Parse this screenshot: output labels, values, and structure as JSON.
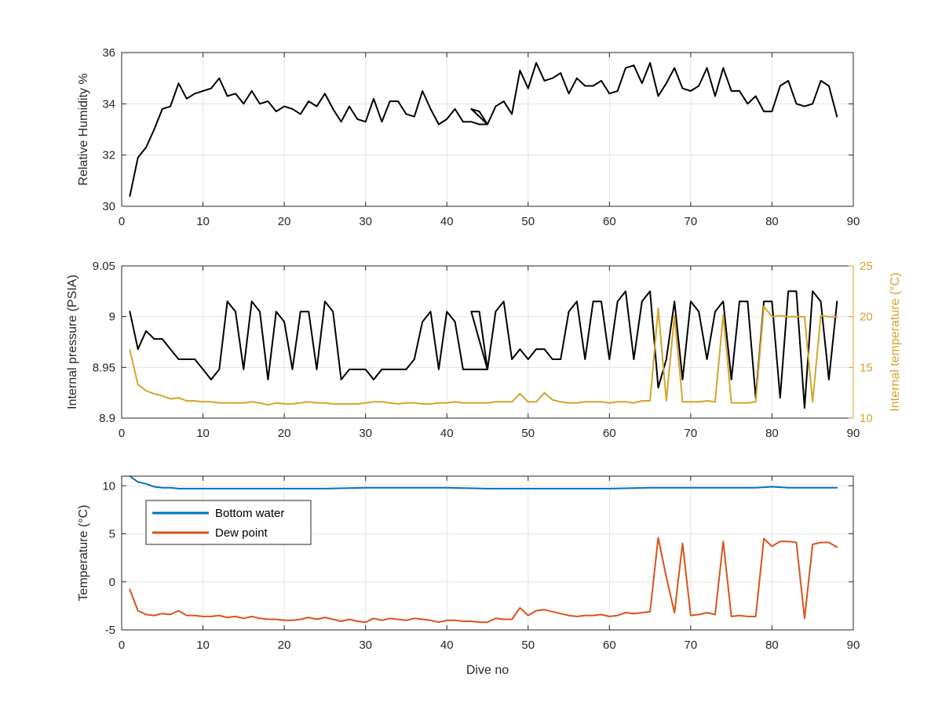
{
  "chart_data": [
    {
      "type": "line",
      "xlabel": "",
      "ylabel": "Relative Humidity %",
      "xlim": [
        0,
        90
      ],
      "ylim": [
        30,
        36
      ],
      "xticks": [
        "0",
        "10",
        "20",
        "30",
        "40",
        "50",
        "60",
        "70",
        "80",
        "90"
      ],
      "yticks": [
        "30",
        "32",
        "34",
        "36"
      ],
      "grid": true,
      "series": [
        {
          "color": "#000000",
          "x": [
            1,
            2,
            3,
            4,
            5,
            6,
            7,
            8,
            9,
            10,
            11,
            12,
            13,
            14,
            15,
            16,
            17,
            18,
            19,
            20,
            21,
            22,
            23,
            24,
            25,
            26,
            27,
            28,
            29,
            30,
            31,
            32,
            33,
            34,
            35,
            36,
            37,
            38,
            39,
            40,
            41,
            42,
            43,
            44,
            45,
            43,
            44,
            45,
            46,
            47,
            48,
            49,
            50,
            51,
            52,
            53,
            54,
            55,
            56,
            57,
            58,
            59,
            60,
            61,
            62,
            63,
            64,
            65,
            66,
            67,
            68,
            69,
            70,
            71,
            72,
            73,
            74,
            75,
            76,
            77,
            78,
            79,
            80,
            81,
            82,
            83,
            84,
            85,
            86,
            87,
            88
          ],
          "y": [
            30.4,
            31.9,
            32.3,
            33.0,
            33.8,
            33.9,
            34.8,
            34.2,
            34.4,
            34.5,
            34.6,
            35.0,
            34.3,
            34.4,
            34.0,
            34.5,
            34.0,
            34.1,
            33.7,
            33.9,
            33.8,
            33.6,
            34.1,
            33.9,
            34.4,
            33.8,
            33.3,
            33.9,
            33.4,
            33.3,
            34.2,
            33.3,
            34.1,
            34.1,
            33.6,
            33.5,
            34.5,
            33.8,
            33.2,
            33.4,
            33.8,
            33.3,
            33.3,
            33.2,
            33.2,
            33.8,
            33.7,
            33.2,
            33.9,
            34.1,
            33.6,
            35.3,
            34.6,
            35.6,
            34.9,
            35.0,
            35.2,
            34.4,
            35.0,
            34.7,
            34.7,
            34.9,
            34.4,
            34.5,
            35.4,
            35.5,
            34.8,
            35.6,
            34.3,
            34.8,
            35.4,
            34.6,
            34.5,
            34.7,
            35.4,
            34.3,
            35.4,
            34.5,
            34.5,
            34.0,
            34.3,
            33.7,
            33.7,
            34.7,
            34.9,
            34.0,
            33.9,
            34.0,
            34.9,
            34.7,
            33.5
          ]
        }
      ]
    },
    {
      "type": "line",
      "xlabel": "",
      "ylabel": "Internal pressure (PSIA)",
      "y2label": "Internal temperature (°C)",
      "xlim": [
        0,
        90
      ],
      "ylim": [
        8.9,
        9.05
      ],
      "y2lim": [
        10,
        25
      ],
      "xticks": [
        "0",
        "10",
        "20",
        "30",
        "40",
        "50",
        "60",
        "70",
        "80",
        "90"
      ],
      "yticks": [
        "8.9",
        "8.95",
        "9",
        "9.05"
      ],
      "y2ticks": [
        "10",
        "15",
        "20",
        "25"
      ],
      "grid": true,
      "series": [
        {
          "axis": "left",
          "color": "#000000",
          "x": [
            1,
            2,
            3,
            4,
            5,
            6,
            7,
            8,
            9,
            10,
            11,
            12,
            13,
            14,
            15,
            16,
            17,
            18,
            19,
            20,
            21,
            22,
            23,
            24,
            25,
            26,
            27,
            28,
            29,
            30,
            31,
            32,
            33,
            34,
            35,
            36,
            37,
            38,
            39,
            40,
            41,
            42,
            43,
            44,
            45,
            43,
            44,
            45,
            46,
            47,
            48,
            49,
            50,
            51,
            52,
            53,
            54,
            55,
            56,
            57,
            58,
            59,
            60,
            61,
            62,
            63,
            64,
            65,
            66,
            67,
            68,
            69,
            70,
            71,
            72,
            73,
            74,
            75,
            76,
            77,
            78,
            79,
            80,
            81,
            82,
            83,
            84,
            85,
            86,
            87,
            88
          ],
          "y": [
            9.005,
            8.968,
            8.986,
            8.978,
            8.978,
            8.968,
            8.958,
            8.958,
            8.958,
            8.948,
            8.938,
            8.948,
            9.015,
            9.005,
            8.948,
            9.015,
            9.005,
            8.938,
            9.005,
            8.995,
            8.948,
            9.005,
            9.005,
            8.948,
            9.015,
            9.005,
            8.938,
            8.948,
            8.948,
            8.948,
            8.938,
            8.948,
            8.948,
            8.948,
            8.948,
            8.958,
            8.995,
            9.005,
            8.948,
            9.005,
            8.995,
            8.948,
            8.948,
            8.948,
            8.948,
            9.005,
            9.005,
            8.948,
            9.005,
            9.015,
            8.958,
            8.968,
            8.958,
            8.968,
            8.968,
            8.958,
            8.958,
            9.005,
            9.015,
            8.958,
            9.015,
            9.015,
            8.958,
            9.015,
            9.025,
            8.958,
            9.015,
            9.025,
            8.93,
            8.958,
            9.015,
            8.938,
            9.015,
            9.005,
            8.958,
            9.005,
            9.015,
            8.938,
            9.015,
            9.015,
            8.92,
            9.015,
            9.015,
            8.92,
            9.025,
            9.025,
            8.91,
            9.025,
            9.015,
            8.938,
            9.015
          ]
        },
        {
          "axis": "right",
          "color": "#D4A42B",
          "x": [
            1,
            2,
            3,
            4,
            5,
            6,
            7,
            8,
            9,
            10,
            11,
            12,
            13,
            14,
            15,
            16,
            17,
            18,
            19,
            20,
            21,
            22,
            23,
            24,
            25,
            26,
            27,
            28,
            29,
            30,
            31,
            32,
            33,
            34,
            35,
            36,
            37,
            38,
            39,
            40,
            41,
            42,
            43,
            44,
            45,
            46,
            47,
            48,
            49,
            50,
            51,
            52,
            53,
            54,
            55,
            56,
            57,
            58,
            59,
            60,
            61,
            62,
            63,
            64,
            65,
            66,
            67,
            68,
            69,
            70,
            71,
            72,
            73,
            74,
            75,
            76,
            77,
            78,
            79,
            80,
            81,
            82,
            83,
            84,
            85,
            86,
            87,
            88
          ],
          "y": [
            16.7,
            13.3,
            12.7,
            12.4,
            12.2,
            11.9,
            12.0,
            11.7,
            11.7,
            11.6,
            11.6,
            11.5,
            11.5,
            11.5,
            11.5,
            11.6,
            11.5,
            11.3,
            11.5,
            11.4,
            11.4,
            11.5,
            11.6,
            11.5,
            11.5,
            11.4,
            11.4,
            11.4,
            11.4,
            11.5,
            11.6,
            11.6,
            11.5,
            11.4,
            11.5,
            11.5,
            11.4,
            11.4,
            11.5,
            11.5,
            11.6,
            11.5,
            11.5,
            11.5,
            11.5,
            11.6,
            11.6,
            11.6,
            12.4,
            11.6,
            11.6,
            12.5,
            11.8,
            11.6,
            11.5,
            11.5,
            11.6,
            11.6,
            11.6,
            11.5,
            11.6,
            11.6,
            11.5,
            11.7,
            11.7,
            20.8,
            11.7,
            20.1,
            11.6,
            11.6,
            11.6,
            11.7,
            11.6,
            20.2,
            11.5,
            11.5,
            11.5,
            11.6,
            21.0,
            20.0,
            20.1,
            20.0,
            20.0,
            20.0,
            11.6,
            20.1,
            20.0,
            20.0
          ]
        }
      ]
    },
    {
      "type": "line",
      "xlabel": "Dive no",
      "ylabel": "Temperature (°C)",
      "xlim": [
        0,
        90
      ],
      "ylim": [
        -5,
        11
      ],
      "xticks": [
        "0",
        "10",
        "20",
        "30",
        "40",
        "50",
        "60",
        "70",
        "80",
        "90"
      ],
      "yticks": [
        "-5",
        "0",
        "5",
        "10"
      ],
      "grid": true,
      "legend": "upper-left",
      "series": [
        {
          "name": "Bottom water",
          "color": "#0072BD",
          "x": [
            1,
            2,
            3,
            4,
            5,
            6,
            7,
            8,
            9,
            10,
            15,
            20,
            25,
            30,
            35,
            40,
            45,
            50,
            55,
            60,
            65,
            70,
            75,
            78,
            80,
            82,
            85,
            88
          ],
          "y": [
            11.0,
            10.4,
            10.2,
            9.9,
            9.8,
            9.8,
            9.7,
            9.7,
            9.7,
            9.7,
            9.7,
            9.7,
            9.7,
            9.8,
            9.8,
            9.8,
            9.7,
            9.7,
            9.7,
            9.7,
            9.8,
            9.8,
            9.8,
            9.8,
            9.9,
            9.8,
            9.8,
            9.8
          ]
        },
        {
          "name": "Dew point",
          "color": "#D95319",
          "x": [
            1,
            2,
            3,
            4,
            5,
            6,
            7,
            8,
            9,
            10,
            11,
            12,
            13,
            14,
            15,
            16,
            17,
            18,
            19,
            20,
            21,
            22,
            23,
            24,
            25,
            26,
            27,
            28,
            29,
            30,
            31,
            32,
            33,
            34,
            35,
            36,
            37,
            38,
            39,
            40,
            41,
            42,
            43,
            44,
            45,
            46,
            47,
            48,
            49,
            50,
            51,
            52,
            53,
            54,
            55,
            56,
            57,
            58,
            59,
            60,
            61,
            62,
            63,
            64,
            65,
            66,
            67,
            68,
            69,
            70,
            71,
            72,
            73,
            74,
            75,
            76,
            77,
            78,
            79,
            80,
            81,
            82,
            83,
            84,
            85,
            86,
            87,
            88
          ],
          "y": [
            -0.8,
            -3.0,
            -3.4,
            -3.5,
            -3.3,
            -3.4,
            -3.0,
            -3.5,
            -3.5,
            -3.6,
            -3.6,
            -3.5,
            -3.7,
            -3.6,
            -3.8,
            -3.6,
            -3.8,
            -3.9,
            -3.9,
            -4.0,
            -4.0,
            -3.9,
            -3.7,
            -3.9,
            -3.7,
            -3.9,
            -4.1,
            -3.9,
            -4.1,
            -4.2,
            -3.8,
            -4.0,
            -3.8,
            -3.9,
            -4.0,
            -3.8,
            -3.9,
            -4.0,
            -4.2,
            -4.0,
            -4.0,
            -4.1,
            -4.1,
            -4.2,
            -4.2,
            -3.8,
            -3.9,
            -3.9,
            -2.7,
            -3.5,
            -3.0,
            -2.9,
            -3.1,
            -3.3,
            -3.5,
            -3.6,
            -3.5,
            -3.5,
            -3.4,
            -3.6,
            -3.5,
            -3.2,
            -3.3,
            -3.2,
            -3.1,
            4.6,
            0.5,
            -3.2,
            4.0,
            -3.5,
            -3.4,
            -3.2,
            -3.4,
            4.2,
            -3.6,
            -3.5,
            -3.6,
            -3.6,
            4.5,
            3.7,
            4.2,
            4.2,
            4.1,
            -3.8,
            3.9,
            4.1,
            4.1,
            3.6
          ]
        }
      ]
    }
  ]
}
